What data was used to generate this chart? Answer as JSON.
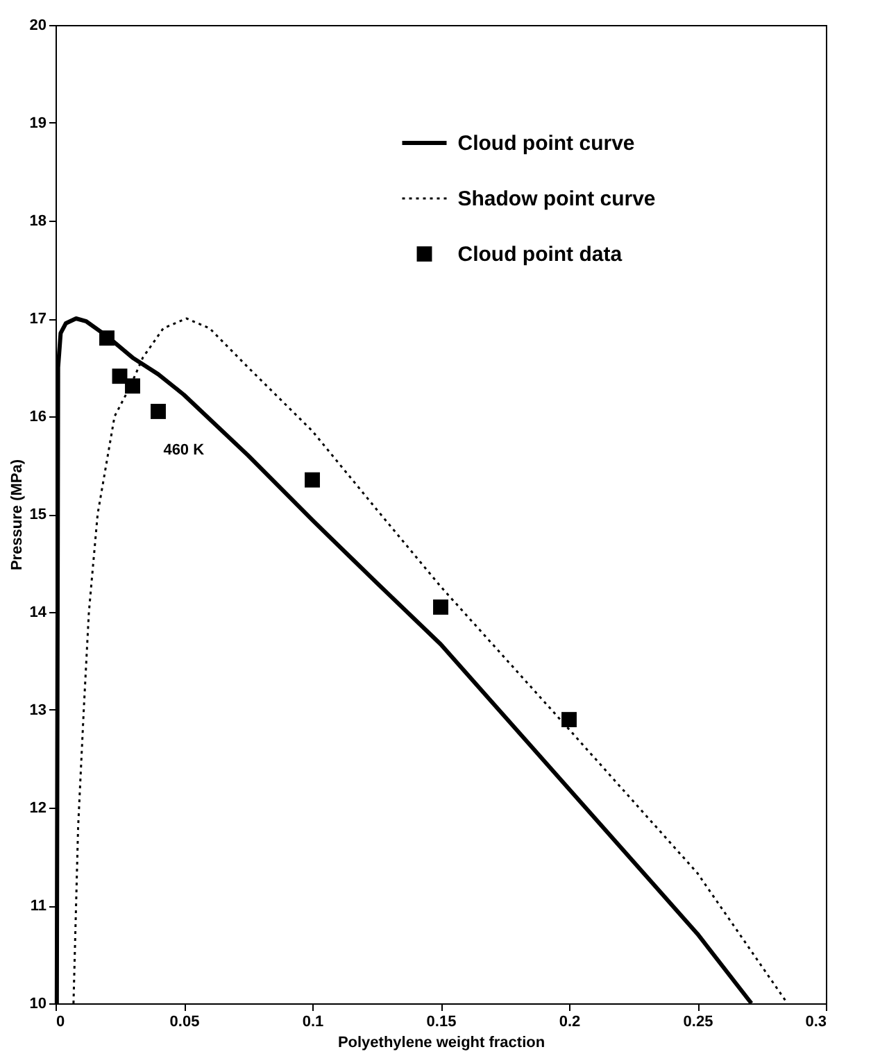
{
  "chart_data": {
    "type": "line",
    "xlabel": "Polyethylene weight fraction",
    "ylabel": "Pressure (MPa)",
    "xlim": [
      0,
      0.3
    ],
    "xticks": [
      0,
      0.05,
      0.1,
      0.15,
      0.2,
      0.25,
      0.3
    ],
    "ylim": [
      10,
      20
    ],
    "yticks": [
      10,
      11,
      12,
      13,
      14,
      15,
      16,
      17,
      18,
      19,
      20
    ],
    "grid": false,
    "legend": "top right",
    "annotations": [
      "460 K"
    ],
    "series": [
      {
        "name": "Cloud point curve",
        "type": "line",
        "line_style": "solid",
        "marker": "none",
        "color": "#000000",
        "x": [
          0.0005,
          0.001,
          0.002,
          0.004,
          0.008,
          0.012,
          0.02,
          0.03,
          0.04,
          0.05,
          0.075,
          0.1,
          0.125,
          0.15,
          0.2,
          0.25,
          0.271
        ],
        "values": [
          10,
          16.5,
          16.85,
          16.95,
          17.0,
          16.97,
          16.82,
          16.6,
          16.43,
          16.22,
          15.6,
          14.94,
          14.3,
          13.67,
          12.19,
          10.71,
          10
        ]
      },
      {
        "name": "Shadow point curve",
        "type": "line",
        "line_style": "dotted",
        "marker": "none",
        "color": "#000000",
        "x": [
          0.007,
          0.0088,
          0.011,
          0.013,
          0.0164,
          0.023,
          0.029,
          0.034,
          0.042,
          0.051,
          0.06,
          0.075,
          0.1,
          0.125,
          0.15,
          0.2,
          0.25,
          0.285
        ],
        "values": [
          10,
          11.8,
          13,
          14,
          15,
          16,
          16.3,
          16.6,
          16.9,
          17.0,
          16.9,
          16.5,
          15.85,
          15.05,
          14.26,
          12.8,
          11.33,
          10
        ]
      },
      {
        "name": "Cloud point data",
        "type": "scatter",
        "marker": "square",
        "color": "#000000",
        "x": [
          0.02,
          0.025,
          0.03,
          0.04,
          0.1,
          0.15,
          0.2
        ],
        "values": [
          16.8,
          16.41,
          16.31,
          16.05,
          15.35,
          14.05,
          12.9
        ]
      }
    ]
  }
}
